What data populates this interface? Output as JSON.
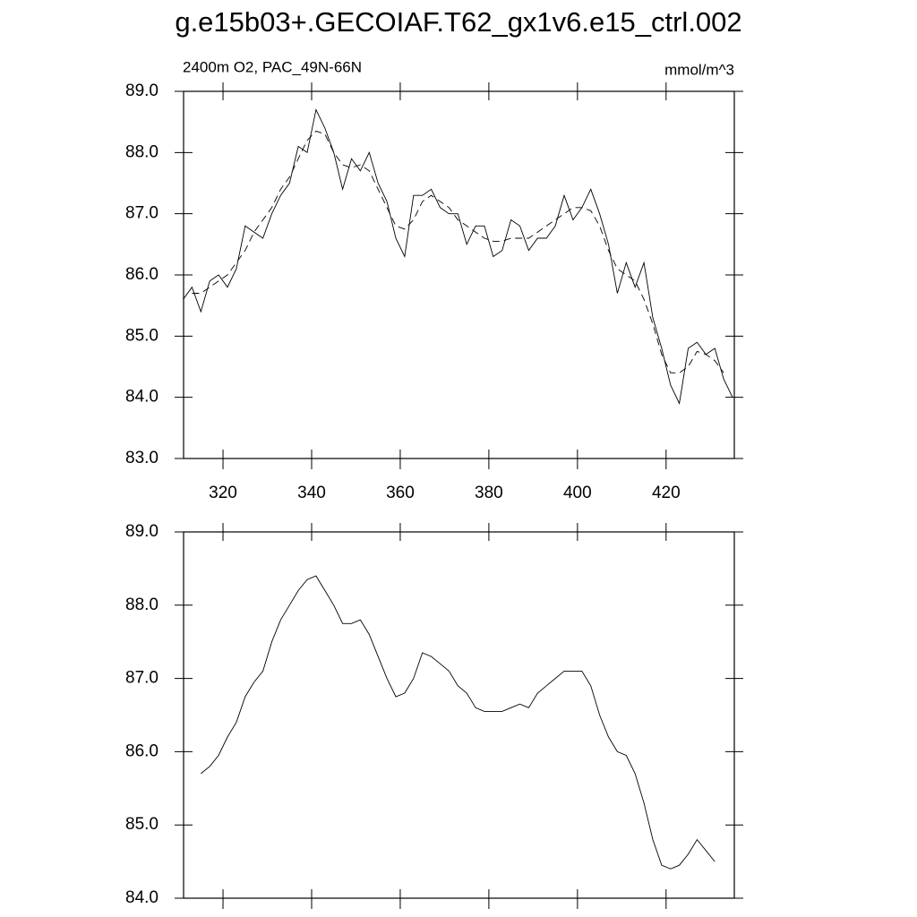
{
  "chart_data": [
    {
      "type": "line",
      "title": "g.e15b03+.GECOIAF.T62_gx1v6.e15_ctrl.002",
      "left_label": "2400m O2, PAC_49N-66N",
      "right_label": "mmol/m^3",
      "x": [
        311,
        313,
        315,
        317,
        319,
        321,
        323,
        325,
        327,
        329,
        331,
        333,
        335,
        337,
        339,
        341,
        343,
        345,
        347,
        349,
        351,
        353,
        355,
        357,
        359,
        361,
        363,
        365,
        367,
        369,
        371,
        373,
        375,
        377,
        379,
        381,
        383,
        385,
        387,
        389,
        391,
        393,
        395,
        397,
        399,
        401,
        403,
        405,
        407,
        409,
        411,
        413,
        415,
        417,
        419,
        421,
        423,
        425,
        427,
        429,
        431,
        433,
        435
      ],
      "series": [
        {
          "color": "#000000",
          "dashed": false,
          "values": [
            85.6,
            85.8,
            85.4,
            85.9,
            86.0,
            85.8,
            86.1,
            86.8,
            86.7,
            86.6,
            87.0,
            87.3,
            87.5,
            88.1,
            88.0,
            88.7,
            88.4,
            88.0,
            87.4,
            87.9,
            87.7,
            88.0,
            87.5,
            87.2,
            86.6,
            86.3,
            87.3,
            87.3,
            87.4,
            87.1,
            87.0,
            87.0,
            86.5,
            86.8,
            86.8,
            86.3,
            86.4,
            86.9,
            86.8,
            86.4,
            86.6,
            86.6,
            86.8,
            87.3,
            86.9,
            87.1,
            87.4,
            87.0,
            86.5,
            85.7,
            86.2,
            85.8,
            86.2,
            85.3,
            84.8,
            84.2,
            83.9,
            84.8,
            84.9,
            84.7,
            84.8,
            84.3,
            84.0
          ]
        },
        {
          "color": "#000000",
          "dashed": true,
          "values": [
            null,
            85.7,
            85.7,
            85.8,
            85.9,
            86.0,
            86.2,
            86.4,
            86.7,
            86.9,
            87.1,
            87.4,
            87.6,
            87.9,
            88.2,
            88.35,
            88.3,
            88.0,
            87.8,
            87.75,
            87.8,
            87.7,
            87.4,
            87.1,
            86.8,
            86.75,
            86.9,
            87.2,
            87.3,
            87.2,
            87.1,
            86.9,
            86.8,
            86.7,
            86.6,
            86.55,
            86.55,
            86.6,
            86.6,
            86.6,
            86.7,
            86.8,
            86.9,
            87.0,
            87.1,
            87.1,
            87.05,
            86.8,
            86.4,
            86.1,
            86.0,
            85.9,
            85.6,
            85.2,
            84.7,
            84.4,
            84.4,
            84.5,
            84.75,
            84.7,
            84.6,
            84.4,
            null
          ]
        }
      ],
      "xlim": [
        311.1,
        435.4
      ],
      "ylim": [
        83,
        89
      ],
      "xticks": [
        320,
        340,
        360,
        380,
        400,
        420
      ],
      "yticks": [
        {
          "value": 83,
          "label": "83.0"
        },
        {
          "value": 84,
          "label": "84.0"
        },
        {
          "value": 85,
          "label": "85.0"
        },
        {
          "value": 86,
          "label": "86.0"
        },
        {
          "value": 87,
          "label": "87.0"
        },
        {
          "value": 88,
          "label": "88.0"
        },
        {
          "value": 89,
          "label": "89.0"
        }
      ]
    },
    {
      "type": "line",
      "x": [
        315,
        317,
        319,
        321,
        323,
        325,
        327,
        329,
        331,
        333,
        335,
        337,
        339,
        341,
        343,
        345,
        347,
        349,
        351,
        353,
        355,
        357,
        359,
        361,
        363,
        365,
        367,
        369,
        371,
        373,
        375,
        377,
        379,
        381,
        383,
        385,
        387,
        389,
        391,
        393,
        395,
        397,
        399,
        401,
        403,
        405,
        407,
        409,
        411,
        413,
        415,
        417,
        419,
        421,
        423,
        425,
        427,
        429,
        431
      ],
      "series": [
        {
          "color": "#000000",
          "dashed": false,
          "values": [
            85.7,
            85.8,
            85.95,
            86.2,
            86.4,
            86.75,
            86.95,
            87.1,
            87.5,
            87.8,
            88.0,
            88.2,
            88.35,
            88.4,
            88.2,
            88.0,
            87.75,
            87.75,
            87.8,
            87.6,
            87.3,
            87.0,
            86.75,
            86.8,
            87.0,
            87.35,
            87.3,
            87.2,
            87.1,
            86.9,
            86.8,
            86.6,
            86.55,
            86.55,
            86.55,
            86.6,
            86.65,
            86.6,
            86.8,
            86.9,
            87.0,
            87.1,
            87.1,
            87.1,
            86.9,
            86.5,
            86.2,
            86.0,
            85.95,
            85.7,
            85.3,
            84.8,
            84.45,
            84.4,
            84.45,
            84.6,
            84.8,
            84.65,
            84.5
          ]
        }
      ],
      "xlim": [
        311.1,
        435.4
      ],
      "ylim": [
        84,
        89
      ],
      "xticks": [
        320,
        340,
        360,
        380,
        400,
        420
      ],
      "yticks": [
        {
          "value": 84,
          "label": "84.0"
        },
        {
          "value": 85,
          "label": "85.0"
        },
        {
          "value": 86,
          "label": "86.0"
        },
        {
          "value": 87,
          "label": "87.0"
        },
        {
          "value": 88,
          "label": "88.0"
        },
        {
          "value": 89,
          "label": "89.0"
        }
      ]
    }
  ]
}
